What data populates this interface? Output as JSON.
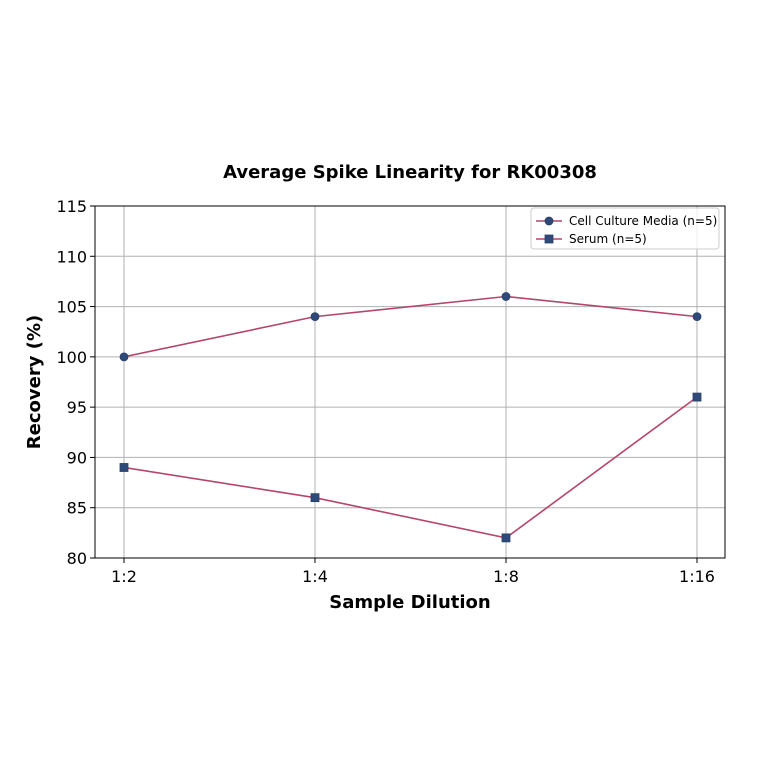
{
  "chart_data": {
    "type": "line",
    "title": "Average Spike Linearity for RK00308",
    "xlabel": "Sample Dilution",
    "ylabel": "Recovery (%)",
    "categories": [
      "1:2",
      "1:4",
      "1:8",
      "1:16"
    ],
    "ylim": [
      80,
      115
    ],
    "yticks": [
      80,
      85,
      90,
      95,
      100,
      105,
      110,
      115
    ],
    "grid": true,
    "legend_position": "upper right",
    "series": [
      {
        "name": "Cell Culture Media (n=5)",
        "marker": "circle",
        "values": [
          100,
          104,
          106,
          104
        ]
      },
      {
        "name": "Serum (n=5)",
        "marker": "square",
        "values": [
          89,
          86,
          82,
          96
        ]
      }
    ],
    "colors": {
      "line": "#b5456b",
      "marker": "#2e4a7a",
      "grid": "#b0b0b0",
      "axis": "#000000"
    }
  }
}
